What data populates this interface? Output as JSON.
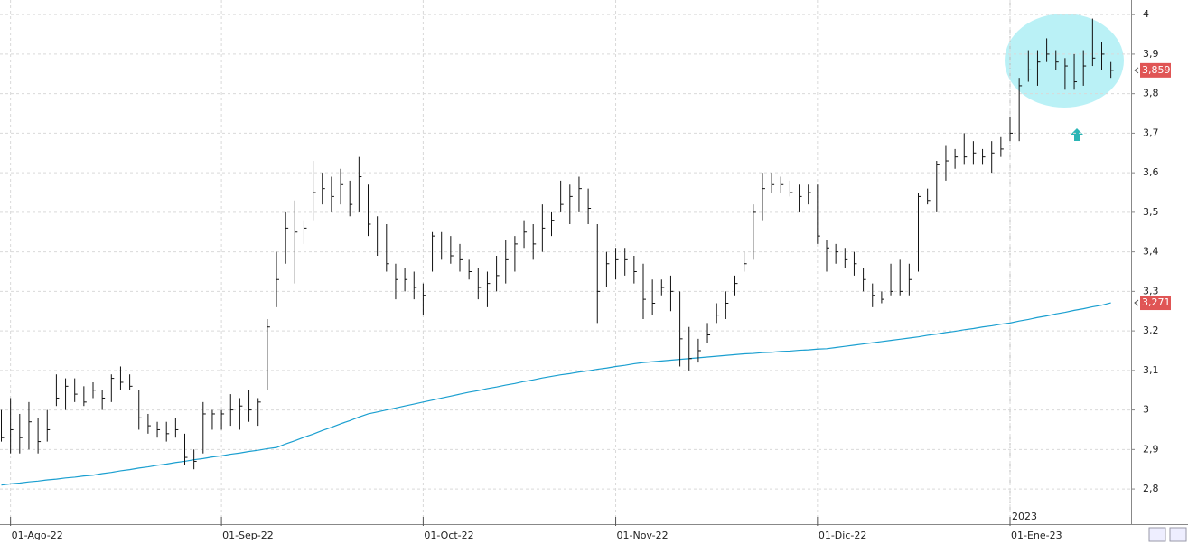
{
  "chart_data": {
    "type": "ohlc",
    "categories": [
      null,
      "01-Ago-22",
      null,
      null,
      null,
      null,
      null,
      null,
      null,
      null,
      null,
      null,
      null,
      null,
      null,
      null,
      null,
      null,
      null,
      null,
      null,
      null,
      null,
      null,
      "01-Sep-22",
      null,
      null,
      null,
      null,
      null,
      null,
      null,
      null,
      null,
      null,
      null,
      null,
      null,
      null,
      null,
      null,
      null,
      null,
      null,
      null,
      null,
      "01-Oct-22",
      null,
      null,
      null,
      null,
      null,
      null,
      null,
      null,
      null,
      null,
      null,
      null,
      null,
      null,
      null,
      null,
      null,
      null,
      null,
      null,
      "01-Nov-22",
      null,
      null,
      null,
      null,
      null,
      null,
      null,
      null,
      null,
      null,
      null,
      null,
      null,
      null,
      null,
      null,
      null,
      null,
      null,
      null,
      null,
      "01-Dic-22",
      null,
      null,
      null,
      null,
      null,
      null,
      null,
      null,
      null,
      null,
      null,
      null,
      null,
      null,
      null,
      null,
      null,
      null,
      null,
      null,
      "01-Ene-23",
      null,
      null,
      null,
      null,
      null,
      null,
      null,
      null,
      null,
      null,
      null
    ],
    "high": [
      3.0,
      3.03,
      2.99,
      3.02,
      2.98,
      3.0,
      3.09,
      3.08,
      3.08,
      3.06,
      3.07,
      3.05,
      3.09,
      3.11,
      3.09,
      3.05,
      2.99,
      2.97,
      2.97,
      2.98,
      2.94,
      2.9,
      3.02,
      3.0,
      3.0,
      3.04,
      3.03,
      3.05,
      3.03,
      3.23,
      3.4,
      3.5,
      3.53,
      3.48,
      3.63,
      3.6,
      3.59,
      3.61,
      3.58,
      3.64,
      3.57,
      3.49,
      3.47,
      3.37,
      3.36,
      3.35,
      3.32,
      3.45,
      3.45,
      3.44,
      3.42,
      3.38,
      3.36,
      3.35,
      3.39,
      3.43,
      3.44,
      3.48,
      3.47,
      3.52,
      3.5,
      3.58,
      3.57,
      3.59,
      3.56,
      3.47,
      3.4,
      3.41,
      3.41,
      3.39,
      3.37,
      3.33,
      3.33,
      3.34,
      3.3,
      3.21,
      3.18,
      3.22,
      3.27,
      3.3,
      3.34,
      3.4,
      3.52,
      3.6,
      3.6,
      3.59,
      3.58,
      3.57,
      3.57,
      3.57,
      3.43,
      3.42,
      3.41,
      3.4,
      3.36,
      3.32,
      3.3,
      3.37,
      3.38,
      3.37,
      3.55,
      3.56,
      3.63,
      3.67,
      3.66,
      3.7,
      3.68,
      3.66,
      3.68,
      3.69,
      3.74,
      3.84,
      3.91,
      3.91,
      3.94,
      3.91,
      3.89,
      3.9,
      3.91,
      3.99,
      3.93,
      3.88
    ],
    "low": [
      2.92,
      2.89,
      2.89,
      2.9,
      2.89,
      2.92,
      3.01,
      3.0,
      3.02,
      3.01,
      3.03,
      3.0,
      3.02,
      3.05,
      3.05,
      2.95,
      2.94,
      2.93,
      2.92,
      2.93,
      2.86,
      2.85,
      2.89,
      2.95,
      2.95,
      2.96,
      2.95,
      2.97,
      2.96,
      3.05,
      3.26,
      3.37,
      3.32,
      3.42,
      3.48,
      3.52,
      3.5,
      3.52,
      3.49,
      3.5,
      3.44,
      3.39,
      3.35,
      3.28,
      3.3,
      3.28,
      3.24,
      3.35,
      3.38,
      3.37,
      3.35,
      3.33,
      3.28,
      3.26,
      3.3,
      3.32,
      3.35,
      3.41,
      3.38,
      3.4,
      3.44,
      3.5,
      3.47,
      3.5,
      3.47,
      3.22,
      3.31,
      3.33,
      3.34,
      3.32,
      3.23,
      3.24,
      3.29,
      3.25,
      3.11,
      3.1,
      3.12,
      3.17,
      3.22,
      3.23,
      3.29,
      3.35,
      3.38,
      3.48,
      3.55,
      3.55,
      3.54,
      3.5,
      3.52,
      3.42,
      3.35,
      3.37,
      3.36,
      3.34,
      3.3,
      3.26,
      3.27,
      3.29,
      3.29,
      3.29,
      3.35,
      3.52,
      3.5,
      3.58,
      3.61,
      3.62,
      3.62,
      3.62,
      3.6,
      3.64,
      3.68,
      3.68,
      3.83,
      3.82,
      3.88,
      3.86,
      3.81,
      3.81,
      3.82,
      3.87,
      3.86,
      3.84
    ],
    "close": [
      2.93,
      2.95,
      2.93,
      2.97,
      2.92,
      2.95,
      3.03,
      3.06,
      3.04,
      3.02,
      3.05,
      3.03,
      3.08,
      3.07,
      3.06,
      2.98,
      2.96,
      2.95,
      2.94,
      2.95,
      2.88,
      2.87,
      2.99,
      2.99,
      2.99,
      3.0,
      3.01,
      3.0,
      3.02,
      3.21,
      3.33,
      3.46,
      3.45,
      3.46,
      3.55,
      3.56,
      3.54,
      3.57,
      3.52,
      3.59,
      3.47,
      3.43,
      3.37,
      3.33,
      3.33,
      3.31,
      3.29,
      3.44,
      3.43,
      3.39,
      3.38,
      3.35,
      3.31,
      3.32,
      3.34,
      3.38,
      3.42,
      3.45,
      3.42,
      3.46,
      3.48,
      3.52,
      3.54,
      3.56,
      3.51,
      3.3,
      3.37,
      3.38,
      3.38,
      3.35,
      3.28,
      3.27,
      3.31,
      3.3,
      3.18,
      3.13,
      3.15,
      3.19,
      3.24,
      3.27,
      3.32,
      3.37,
      3.5,
      3.56,
      3.57,
      3.57,
      3.55,
      3.54,
      3.55,
      3.44,
      3.41,
      3.4,
      3.38,
      3.37,
      3.33,
      3.29,
      3.28,
      3.3,
      3.3,
      3.33,
      3.54,
      3.53,
      3.62,
      3.63,
      3.64,
      3.64,
      3.65,
      3.64,
      3.65,
      3.66,
      3.7,
      3.82,
      3.86,
      3.88,
      3.9,
      3.88,
      3.87,
      3.83,
      3.87,
      3.89,
      3.9,
      3.859
    ],
    "ma": [
      2.81,
      2.813,
      2.815,
      2.818,
      2.82,
      2.823,
      2.825,
      2.828,
      2.83,
      2.833,
      2.835,
      2.839,
      2.842,
      2.846,
      2.849,
      2.853,
      2.856,
      2.86,
      2.863,
      2.867,
      2.87,
      2.874,
      2.877,
      2.881,
      2.884,
      2.888,
      2.891,
      2.895,
      2.898,
      2.902,
      2.905,
      2.914,
      2.922,
      2.931,
      2.939,
      2.948,
      2.956,
      2.965,
      2.973,
      2.982,
      2.99,
      2.995,
      3.0,
      3.005,
      3.01,
      3.015,
      3.02,
      3.025,
      3.03,
      3.035,
      3.04,
      3.045,
      3.049,
      3.054,
      3.058,
      3.063,
      3.067,
      3.072,
      3.076,
      3.081,
      3.085,
      3.089,
      3.092,
      3.096,
      3.099,
      3.103,
      3.106,
      3.11,
      3.113,
      3.117,
      3.12,
      3.122,
      3.124,
      3.126,
      3.128,
      3.13,
      3.132,
      3.134,
      3.136,
      3.138,
      3.14,
      3.142,
      3.143,
      3.145,
      3.146,
      3.148,
      3.149,
      3.151,
      3.152,
      3.154,
      3.155,
      3.158,
      3.161,
      3.164,
      3.167,
      3.17,
      3.173,
      3.176,
      3.179,
      3.182,
      3.185,
      3.189,
      3.192,
      3.196,
      3.199,
      3.203,
      3.206,
      3.21,
      3.213,
      3.217,
      3.22,
      3.225,
      3.229,
      3.234,
      3.238,
      3.243,
      3.247,
      3.252,
      3.256,
      3.261,
      3.265,
      3.271
    ],
    "bar_color": "#111111",
    "ma_color": "#1a9fd0",
    "price_labels": [
      {
        "value": 3.859,
        "label": "3,859"
      },
      {
        "value": 3.271,
        "label": "3,271"
      }
    ],
    "price_label_color": "#e05555",
    "annotation": "2023",
    "ylim": [
      2.711,
      4.037
    ],
    "yticks": [
      {
        "value": 2.8,
        "label": "2,8"
      },
      {
        "value": 2.9,
        "label": "2,9"
      },
      3,
      {
        "value": 3.1,
        "label": "3,1"
      },
      {
        "value": 3.2,
        "label": "3,2"
      },
      {
        "value": 3.3,
        "label": "3,3"
      },
      {
        "value": 3.4,
        "label": "3,4"
      },
      {
        "value": 3.5,
        "label": "3,5"
      },
      {
        "value": 3.6,
        "label": "3,6"
      },
      {
        "value": 3.7,
        "label": "3,7"
      },
      {
        "value": 3.8,
        "label": "3,8"
      },
      {
        "value": 3.9,
        "label": "3,9"
      },
      4
    ],
    "grid": true
  }
}
